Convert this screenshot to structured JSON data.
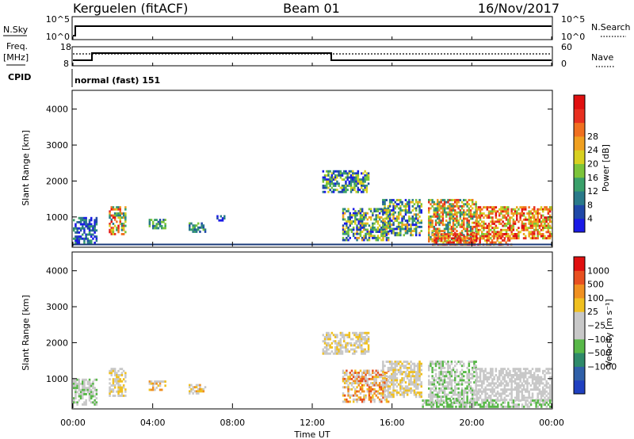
{
  "header": {
    "station": "Kerguelen (fitACF)",
    "beam": "Beam 01",
    "date": "16/Nov/2017"
  },
  "strip": {
    "nsky_label": "N.Sky",
    "nsky_tick_top": "10^5",
    "nsky_tick_bottom": "10^0",
    "nsearch_label": "N.Search",
    "nsearch_tick_top": "10^5",
    "nsearch_tick_bottom": "10^0",
    "freq_label_1": "Freq.",
    "freq_label_2": "[MHz]",
    "freq_tick_top": "18",
    "freq_tick_bottom": "8",
    "nave_label": "Nave",
    "nave_tick_top": "60",
    "nave_tick_bottom": "0",
    "cpid_label": "CPID",
    "cpid_text": "normal (fast) 151"
  },
  "x_axis": {
    "label": "Time UT",
    "ticks": [
      "00:00",
      "04:00",
      "08:00",
      "12:00",
      "16:00",
      "20:00",
      "00:00"
    ]
  },
  "chart_data": [
    {
      "type": "heatmap",
      "name": "power",
      "title": "",
      "xlabel": "Time UT",
      "ylabel": "Slant Range [km]",
      "xlim": [
        0,
        24
      ],
      "ylim": [
        180,
        4500
      ],
      "y_ticks": [
        "1000",
        "2000",
        "3000",
        "4000"
      ],
      "y_tick_values": [
        1000,
        2000,
        3000,
        4000
      ],
      "colorbar": {
        "label": "Power [dB]",
        "ticks": [
          "4",
          "8",
          "12",
          "16",
          "20",
          "24",
          "28"
        ],
        "colors": [
          "#1a1ae6",
          "#2048a8",
          "#2a7a8a",
          "#3aa06a",
          "#7cc43a",
          "#d8d020",
          "#f0a020",
          "#f07020",
          "#e83020",
          "#e01010"
        ]
      },
      "regions": [
        {
          "t0": 0.0,
          "t1": 1.2,
          "r0": 260,
          "r1": 1000,
          "v": [
            0,
            3
          ]
        },
        {
          "t0": 1.8,
          "t1": 2.6,
          "r0": 500,
          "r1": 1300,
          "v": [
            2,
            9
          ]
        },
        {
          "t0": 3.8,
          "t1": 4.6,
          "r0": 700,
          "r1": 950,
          "v": [
            1,
            4
          ]
        },
        {
          "t0": 5.8,
          "t1": 6.6,
          "r0": 600,
          "r1": 850,
          "v": [
            1,
            4
          ]
        },
        {
          "t0": 7.2,
          "t1": 7.6,
          "r0": 900,
          "r1": 1050,
          "v": [
            0,
            2
          ]
        },
        {
          "t0": 12.5,
          "t1": 14.8,
          "r0": 1700,
          "r1": 2300,
          "v": [
            0,
            5
          ]
        },
        {
          "t0": 13.5,
          "t1": 15.8,
          "r0": 350,
          "r1": 1250,
          "v": [
            0,
            6
          ]
        },
        {
          "t0": 15.5,
          "t1": 17.5,
          "r0": 500,
          "r1": 1500,
          "v": [
            0,
            6
          ]
        },
        {
          "t0": 17.8,
          "t1": 20.2,
          "r0": 300,
          "r1": 1500,
          "v": [
            2,
            8
          ]
        },
        {
          "t0": 18.0,
          "t1": 22.0,
          "r0": 220,
          "r1": 550,
          "v": [
            5,
            9
          ]
        },
        {
          "t0": 20.2,
          "t1": 24.0,
          "r0": 400,
          "r1": 1300,
          "v": [
            4,
            9
          ]
        }
      ]
    },
    {
      "type": "heatmap",
      "name": "velocity",
      "title": "",
      "xlabel": "Time UT",
      "ylabel": "Slant Range [km]",
      "xlim": [
        0,
        24
      ],
      "ylim": [
        180,
        4500
      ],
      "y_ticks": [
        "1000",
        "2000",
        "3000",
        "4000"
      ],
      "y_tick_values": [
        1000,
        2000,
        3000,
        4000
      ],
      "colorbar": {
        "label": "Velocity [m s⁻¹]",
        "ticks": [
          "1000",
          "500",
          "100",
          "25",
          "−25",
          "−100",
          "−500",
          "−1000"
        ],
        "colors": [
          "#2040c0",
          "#3060a8",
          "#2f8a6a",
          "#58b848",
          "#c8c8c8",
          "#c8c8c8",
          "#f0c020",
          "#f09020",
          "#e85020",
          "#e01010"
        ]
      },
      "regions": [
        {
          "t0": 0.0,
          "t1": 1.2,
          "r0": 260,
          "r1": 1000,
          "v": [
            3,
            5
          ]
        },
        {
          "t0": 1.8,
          "t1": 2.6,
          "r0": 500,
          "r1": 1300,
          "v": [
            4,
            6
          ]
        },
        {
          "t0": 3.8,
          "t1": 4.6,
          "r0": 700,
          "r1": 950,
          "v": [
            4,
            7
          ]
        },
        {
          "t0": 5.8,
          "t1": 6.6,
          "r0": 600,
          "r1": 850,
          "v": [
            4,
            7
          ]
        },
        {
          "t0": 12.5,
          "t1": 14.8,
          "r0": 1700,
          "r1": 2300,
          "v": [
            4,
            6
          ]
        },
        {
          "t0": 13.5,
          "t1": 15.8,
          "r0": 350,
          "r1": 1250,
          "v": [
            4,
            8
          ]
        },
        {
          "t0": 15.5,
          "t1": 17.5,
          "r0": 500,
          "r1": 1500,
          "v": [
            4,
            6
          ]
        },
        {
          "t0": 17.8,
          "t1": 20.2,
          "r0": 300,
          "r1": 1500,
          "v": [
            3,
            5
          ]
        },
        {
          "t0": 20.2,
          "t1": 24.0,
          "r0": 400,
          "r1": 1300,
          "v": [
            4,
            5
          ]
        },
        {
          "t0": 17.5,
          "t1": 24.0,
          "r0": 200,
          "r1": 420,
          "v": [
            3,
            4
          ]
        }
      ]
    }
  ]
}
